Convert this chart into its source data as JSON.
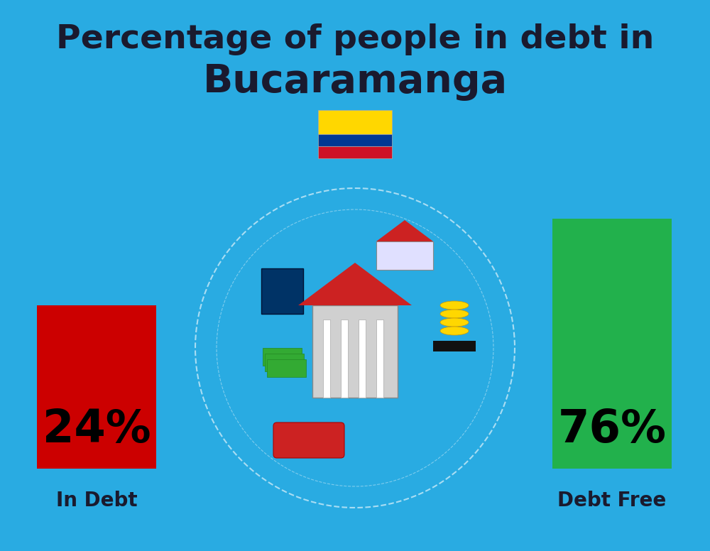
{
  "title_line1": "Percentage of people in debt in",
  "title_line2": "Bucaramanga",
  "background_color": "#29ABE2",
  "bar1_label": "24%",
  "bar1_sublabel": "In Debt",
  "bar1_color": "#CC0000",
  "bar2_label": "76%",
  "bar2_sublabel": "Debt Free",
  "bar2_color": "#22B14C",
  "title_fontsize": 34,
  "subtitle_fontsize": 40,
  "bar_label_fontsize": 46,
  "bar_sublabel_fontsize": 20,
  "title_color": "#1a1a2e",
  "bar_label_color": "#000000",
  "bar_sublabel_color": "#1a1a2e",
  "flag_yellow": "#FFD700",
  "flag_blue": "#003893",
  "flag_red": "#CE1126"
}
